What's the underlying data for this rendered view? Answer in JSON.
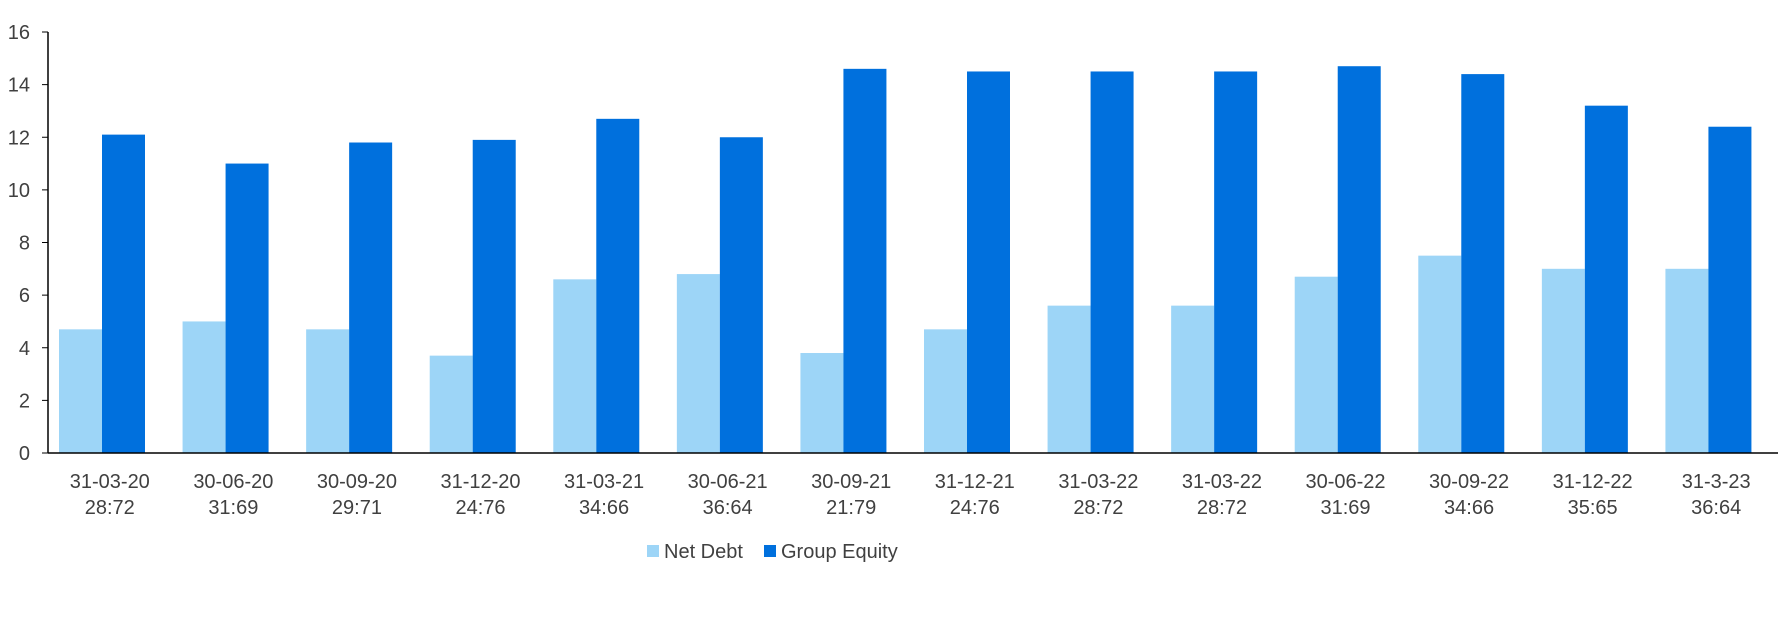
{
  "chart_data": {
    "type": "bar",
    "title": "",
    "xlabel": "",
    "ylabel": "",
    "ylim": [
      0,
      16
    ],
    "yticks": [
      "0",
      "2",
      "4",
      "6",
      "8",
      "10",
      "12",
      "14",
      "16"
    ],
    "grid": false,
    "legend_position": "bottom-center",
    "categories": [
      {
        "date": "31-03-20",
        "ratio": "28:72"
      },
      {
        "date": "30-06-20",
        "ratio": "31:69"
      },
      {
        "date": "30-09-20",
        "ratio": "29:71"
      },
      {
        "date": "31-12-20",
        "ratio": "24:76"
      },
      {
        "date": "31-03-21",
        "ratio": "34:66"
      },
      {
        "date": "30-06-21",
        "ratio": "36:64"
      },
      {
        "date": "30-09-21",
        "ratio": "21:79"
      },
      {
        "date": "31-12-21",
        "ratio": "24:76"
      },
      {
        "date": "31-03-22",
        "ratio": "28:72"
      },
      {
        "date": "31-03-22",
        "ratio": "28:72"
      },
      {
        "date": "30-06-22",
        "ratio": "31:69"
      },
      {
        "date": "30-09-22",
        "ratio": "34:66"
      },
      {
        "date": "31-12-22",
        "ratio": "35:65"
      },
      {
        "date": "31-3-23",
        "ratio": "36:64"
      }
    ],
    "series": [
      {
        "name": "Net Debt",
        "color": "#9dd5f7",
        "values": [
          4.7,
          5.0,
          4.7,
          3.7,
          6.6,
          6.8,
          3.8,
          4.7,
          5.6,
          5.6,
          6.7,
          7.5,
          7.0,
          7.0
        ]
      },
      {
        "name": "Group Equity",
        "color": "#0070dd",
        "values": [
          12.1,
          11.0,
          11.8,
          11.9,
          12.7,
          12.0,
          14.6,
          14.5,
          14.5,
          14.5,
          14.7,
          14.4,
          13.2,
          12.4
        ]
      }
    ]
  },
  "colors": {
    "axis": "#000000",
    "text": "#404040"
  }
}
